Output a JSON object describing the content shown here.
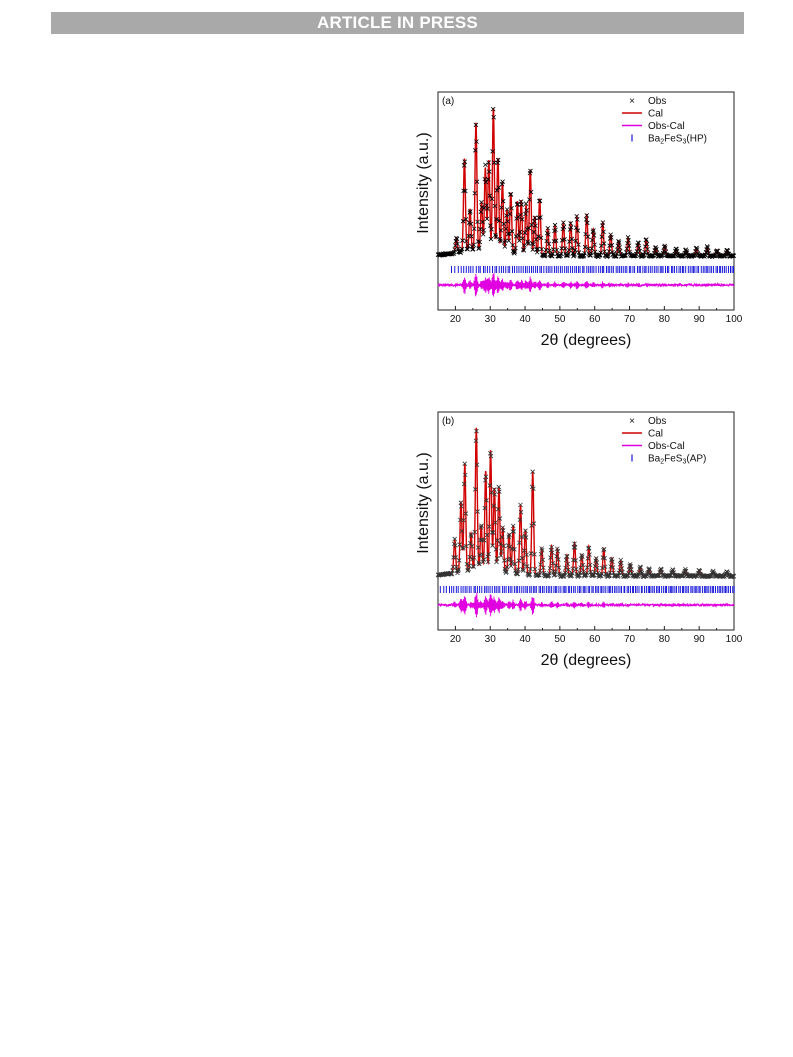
{
  "banner": {
    "text": "ARTICLE IN PRESS"
  },
  "chart_data": [
    {
      "type": "line",
      "panel_label": "(a)",
      "xlabel": "2θ (degrees)",
      "ylabel": "Intensity (a.u.)",
      "xlim": [
        15,
        100
      ],
      "xticks": [
        20,
        30,
        40,
        50,
        60,
        70,
        80,
        90,
        100
      ],
      "legend": [
        {
          "marker": "×",
          "parts": [
            [
              "Obs",
              ""
            ]
          ]
        },
        {
          "marker": "line",
          "color": "#d00000",
          "parts": [
            [
              "Cal",
              ""
            ]
          ]
        },
        {
          "marker": "line",
          "color": "#e000e0",
          "parts": [
            [
              "Obs-Cal",
              ""
            ]
          ]
        },
        {
          "marker": "tick",
          "color": "#1a1adb",
          "parts": [
            [
              "Ba",
              ""
            ],
            [
              "2",
              "sub"
            ],
            [
              "FeS",
              ""
            ],
            [
              "3",
              "sub"
            ],
            [
              "(HP)",
              ""
            ]
          ]
        }
      ],
      "legend_position": "top-right",
      "colors": {
        "obs": "#000000",
        "cal": "#d00000",
        "diff": "#e000e0",
        "bragg": "#1a1adb"
      },
      "peaks": [
        [
          20.3,
          0.1
        ],
        [
          22.6,
          0.62
        ],
        [
          24.2,
          0.28
        ],
        [
          25.9,
          0.85
        ],
        [
          27.5,
          0.32
        ],
        [
          28.6,
          0.55
        ],
        [
          29.6,
          0.6
        ],
        [
          30.9,
          0.95
        ],
        [
          32.2,
          0.62
        ],
        [
          33.5,
          0.47
        ],
        [
          34.8,
          0.28
        ],
        [
          35.9,
          0.4
        ],
        [
          37.8,
          0.35
        ],
        [
          38.9,
          0.36
        ],
        [
          40.3,
          0.33
        ],
        [
          41.5,
          0.57
        ],
        [
          42.8,
          0.26
        ],
        [
          44.2,
          0.38
        ],
        [
          46.5,
          0.18
        ],
        [
          48.6,
          0.2
        ],
        [
          51.0,
          0.22
        ],
        [
          53.1,
          0.22
        ],
        [
          54.9,
          0.26
        ],
        [
          57.7,
          0.28
        ],
        [
          59.6,
          0.18
        ],
        [
          62.3,
          0.22
        ],
        [
          64.6,
          0.14
        ],
        [
          66.9,
          0.1
        ],
        [
          69.6,
          0.12
        ],
        [
          72.5,
          0.09
        ],
        [
          74.8,
          0.11
        ],
        [
          77.5,
          0.06
        ],
        [
          80.1,
          0.07
        ],
        [
          83.4,
          0.05
        ],
        [
          86.2,
          0.04
        ],
        [
          89.2,
          0.05
        ],
        [
          92.3,
          0.06
        ],
        [
          95.1,
          0.04
        ],
        [
          98.0,
          0.04
        ]
      ],
      "baseline": 0.04,
      "bragg_range": [
        19,
        100
      ],
      "bragg_count": 140
    },
    {
      "type": "line",
      "panel_label": "(b)",
      "xlabel": "2θ (degrees)",
      "ylabel": "Intensity (a.u.)",
      "xlim": [
        15,
        100
      ],
      "xticks": [
        20,
        30,
        40,
        50,
        60,
        70,
        80,
        90,
        100
      ],
      "legend": [
        {
          "marker": "×",
          "parts": [
            [
              "Obs",
              ""
            ]
          ]
        },
        {
          "marker": "line",
          "color": "#d00000",
          "parts": [
            [
              "Cal",
              ""
            ]
          ]
        },
        {
          "marker": "line",
          "color": "#e000e0",
          "parts": [
            [
              "Obs-Cal",
              ""
            ]
          ]
        },
        {
          "marker": "tick",
          "color": "#1a1adb",
          "parts": [
            [
              "Ba",
              ""
            ],
            [
              "2",
              "sub"
            ],
            [
              "FeS",
              ""
            ],
            [
              "3",
              "sub"
            ],
            [
              "(AP)",
              ""
            ]
          ]
        }
      ],
      "legend_position": "top-right",
      "colors": {
        "obs": "#333333",
        "cal": "#d00000",
        "diff": "#e000e0",
        "bragg": "#1a1adb"
      },
      "peaks": [
        [
          19.8,
          0.22
        ],
        [
          21.6,
          0.47
        ],
        [
          22.7,
          0.72
        ],
        [
          24.5,
          0.25
        ],
        [
          26.0,
          0.95
        ],
        [
          27.4,
          0.3
        ],
        [
          28.7,
          0.66
        ],
        [
          30.1,
          0.8
        ],
        [
          31.2,
          0.55
        ],
        [
          32.5,
          0.56
        ],
        [
          33.6,
          0.3
        ],
        [
          35.4,
          0.26
        ],
        [
          36.6,
          0.32
        ],
        [
          38.7,
          0.46
        ],
        [
          40.1,
          0.3
        ],
        [
          42.2,
          0.69
        ],
        [
          44.8,
          0.18
        ],
        [
          47.6,
          0.2
        ],
        [
          49.3,
          0.18
        ],
        [
          52.0,
          0.14
        ],
        [
          54.2,
          0.22
        ],
        [
          56.3,
          0.14
        ],
        [
          58.3,
          0.2
        ],
        [
          60.4,
          0.12
        ],
        [
          62.6,
          0.18
        ],
        [
          64.9,
          0.12
        ],
        [
          67.5,
          0.1
        ],
        [
          70.2,
          0.08
        ],
        [
          73.1,
          0.06
        ],
        [
          75.6,
          0.05
        ],
        [
          79.0,
          0.05
        ],
        [
          82.4,
          0.04
        ],
        [
          86.0,
          0.04
        ],
        [
          90.0,
          0.04
        ],
        [
          94.0,
          0.03
        ],
        [
          98.0,
          0.03
        ]
      ],
      "baseline": 0.04,
      "bragg_range": [
        15.8,
        100
      ],
      "bragg_count": 160
    }
  ]
}
